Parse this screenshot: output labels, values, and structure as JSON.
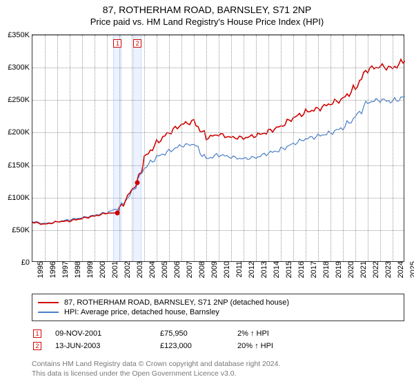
{
  "title": {
    "main": "87, ROTHERHAM ROAD, BARNSLEY, S71 2NP",
    "sub": "Price paid vs. HM Land Registry's House Price Index (HPI)"
  },
  "chart": {
    "type": "line",
    "background_color": "#ffffff",
    "grid_color": "#999999",
    "axis_color": "#333333",
    "label_fontsize": 11,
    "title_fontsize": 14,
    "x": {
      "start_year": 1995,
      "end_year": 2025,
      "tick_step": 1
    },
    "y": {
      "min": 0,
      "max": 350000,
      "tick_step": 50000,
      "labels": [
        "£0",
        "£50K",
        "£100K",
        "£150K",
        "£200K",
        "£250K",
        "£300K",
        "£350K"
      ]
    },
    "series_red": {
      "label": "87, ROTHERHAM ROAD, BARNSLEY, S71 2NP (detached house)",
      "color": "#d00000",
      "line_width": 1.6,
      "points": [
        [
          1995,
          62000
        ],
        [
          1996,
          59000
        ],
        [
          1997,
          63000
        ],
        [
          1998,
          64000
        ],
        [
          1999,
          68000
        ],
        [
          2000,
          72000
        ],
        [
          2001,
          76000
        ],
        [
          2001.86,
          75950
        ],
        [
          2002,
          82000
        ],
        [
          2003,
          112000
        ],
        [
          2003.45,
          123000
        ],
        [
          2004,
          160000
        ],
        [
          2005,
          185000
        ],
        [
          2006,
          200000
        ],
        [
          2007,
          212000
        ],
        [
          2008,
          218000
        ],
        [
          2009,
          192000
        ],
        [
          2010,
          197000
        ],
        [
          2011,
          193000
        ],
        [
          2012,
          192000
        ],
        [
          2013,
          195000
        ],
        [
          2014,
          202000
        ],
        [
          2015,
          210000
        ],
        [
          2016,
          222000
        ],
        [
          2017,
          232000
        ],
        [
          2018,
          237000
        ],
        [
          2019,
          244000
        ],
        [
          2020,
          252000
        ],
        [
          2021,
          270000
        ],
        [
          2022,
          297000
        ],
        [
          2023,
          302000
        ],
        [
          2024,
          300000
        ],
        [
          2025,
          310000
        ]
      ]
    },
    "series_blue": {
      "label": "HPI: Average price, detached house, Barnsley",
      "color": "#4a7ec8",
      "line_width": 1.2,
      "points": [
        [
          1995,
          63000
        ],
        [
          1996,
          60000
        ],
        [
          1997,
          63000
        ],
        [
          1998,
          66000
        ],
        [
          1999,
          69000
        ],
        [
          2000,
          73000
        ],
        [
          2001,
          77000
        ],
        [
          2002,
          84000
        ],
        [
          2003,
          108000
        ],
        [
          2004,
          145000
        ],
        [
          2005,
          162000
        ],
        [
          2006,
          172000
        ],
        [
          2007,
          180000
        ],
        [
          2008,
          182000
        ],
        [
          2009,
          160000
        ],
        [
          2010,
          166000
        ],
        [
          2011,
          162000
        ],
        [
          2012,
          160000
        ],
        [
          2013,
          162000
        ],
        [
          2014,
          168000
        ],
        [
          2015,
          174000
        ],
        [
          2016,
          183000
        ],
        [
          2017,
          190000
        ],
        [
          2018,
          195000
        ],
        [
          2019,
          200000
        ],
        [
          2020,
          207000
        ],
        [
          2021,
          224000
        ],
        [
          2022,
          247000
        ],
        [
          2023,
          250000
        ],
        [
          2024,
          248000
        ],
        [
          2025,
          256000
        ]
      ]
    },
    "sale_markers": [
      {
        "n": "1",
        "year": 2001.86,
        "price": 75950
      },
      {
        "n": "2",
        "year": 2003.45,
        "price": 123000
      }
    ]
  },
  "legend": {
    "red_label": "87, ROTHERHAM ROAD, BARNSLEY, S71 2NP (detached house)",
    "blue_label": "HPI: Average price, detached house, Barnsley"
  },
  "sales": [
    {
      "n": "1",
      "date": "09-NOV-2001",
      "price": "£75,950",
      "pct": "2% ↑ HPI"
    },
    {
      "n": "2",
      "date": "13-JUN-2003",
      "price": "£123,000",
      "pct": "20% ↑ HPI"
    }
  ],
  "footnote": {
    "line1": "Contains HM Land Registry data © Crown copyright and database right 2024.",
    "line2": "This data is licensed under the Open Government Licence v3.0."
  }
}
